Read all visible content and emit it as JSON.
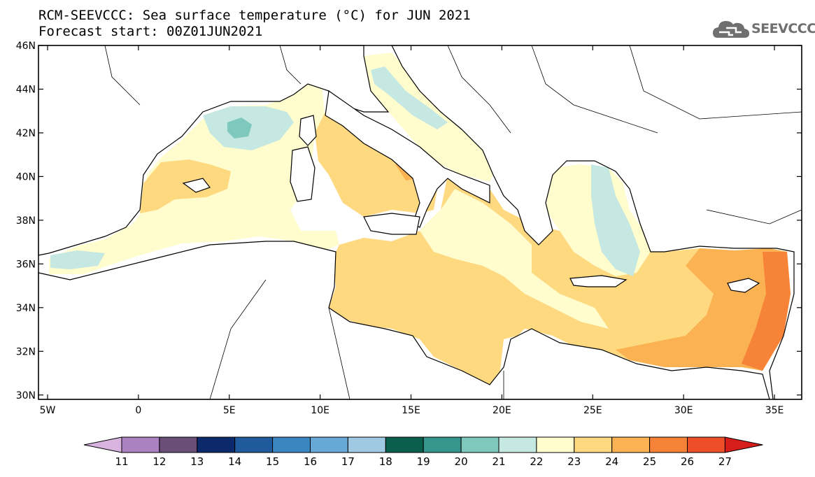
{
  "title": {
    "line1": "RCM-SEEVCCC: Sea surface temperature (°C) for JUN 2021",
    "line2": "Forecast start: 00Z01JUN2021"
  },
  "logo": {
    "text": "SEEVCCC",
    "icon": "cloud-icon"
  },
  "map": {
    "lon_range": [
      -5.5,
      36.5
    ],
    "lat_range": [
      29.8,
      46.0
    ],
    "lat_ticks": [
      "46N",
      "44N",
      "42N",
      "40N",
      "38N",
      "36N",
      "34N",
      "32N",
      "30N"
    ],
    "lat_tick_values": [
      46,
      44,
      42,
      40,
      38,
      36,
      34,
      32,
      30
    ],
    "lon_ticks": [
      "5W",
      "0",
      "5E",
      "10E",
      "15E",
      "20E",
      "25E",
      "30E",
      "35E"
    ],
    "lon_tick_values": [
      -5,
      0,
      5,
      10,
      15,
      20,
      25,
      30,
      35
    ],
    "land_color": "#ffffff",
    "coastline_color": "#000000"
  },
  "colorbar": {
    "labels": [
      "11",
      "12",
      "13",
      "14",
      "15",
      "16",
      "17",
      "18",
      "19",
      "20",
      "21",
      "22",
      "23",
      "24",
      "25",
      "26",
      "27"
    ],
    "colors": [
      "#d9b3e0",
      "#ab82c0",
      "#6a4e78",
      "#0c2a6b",
      "#1f5a9c",
      "#3a86c0",
      "#66a8d6",
      "#9fc8e3",
      "#0a5e4c",
      "#36968b",
      "#7ec8bd",
      "#c6e8e2",
      "#fffccd",
      "#ffd980",
      "#fbb252",
      "#f78338",
      "#ee4f28",
      "#d61d1a"
    ]
  }
}
